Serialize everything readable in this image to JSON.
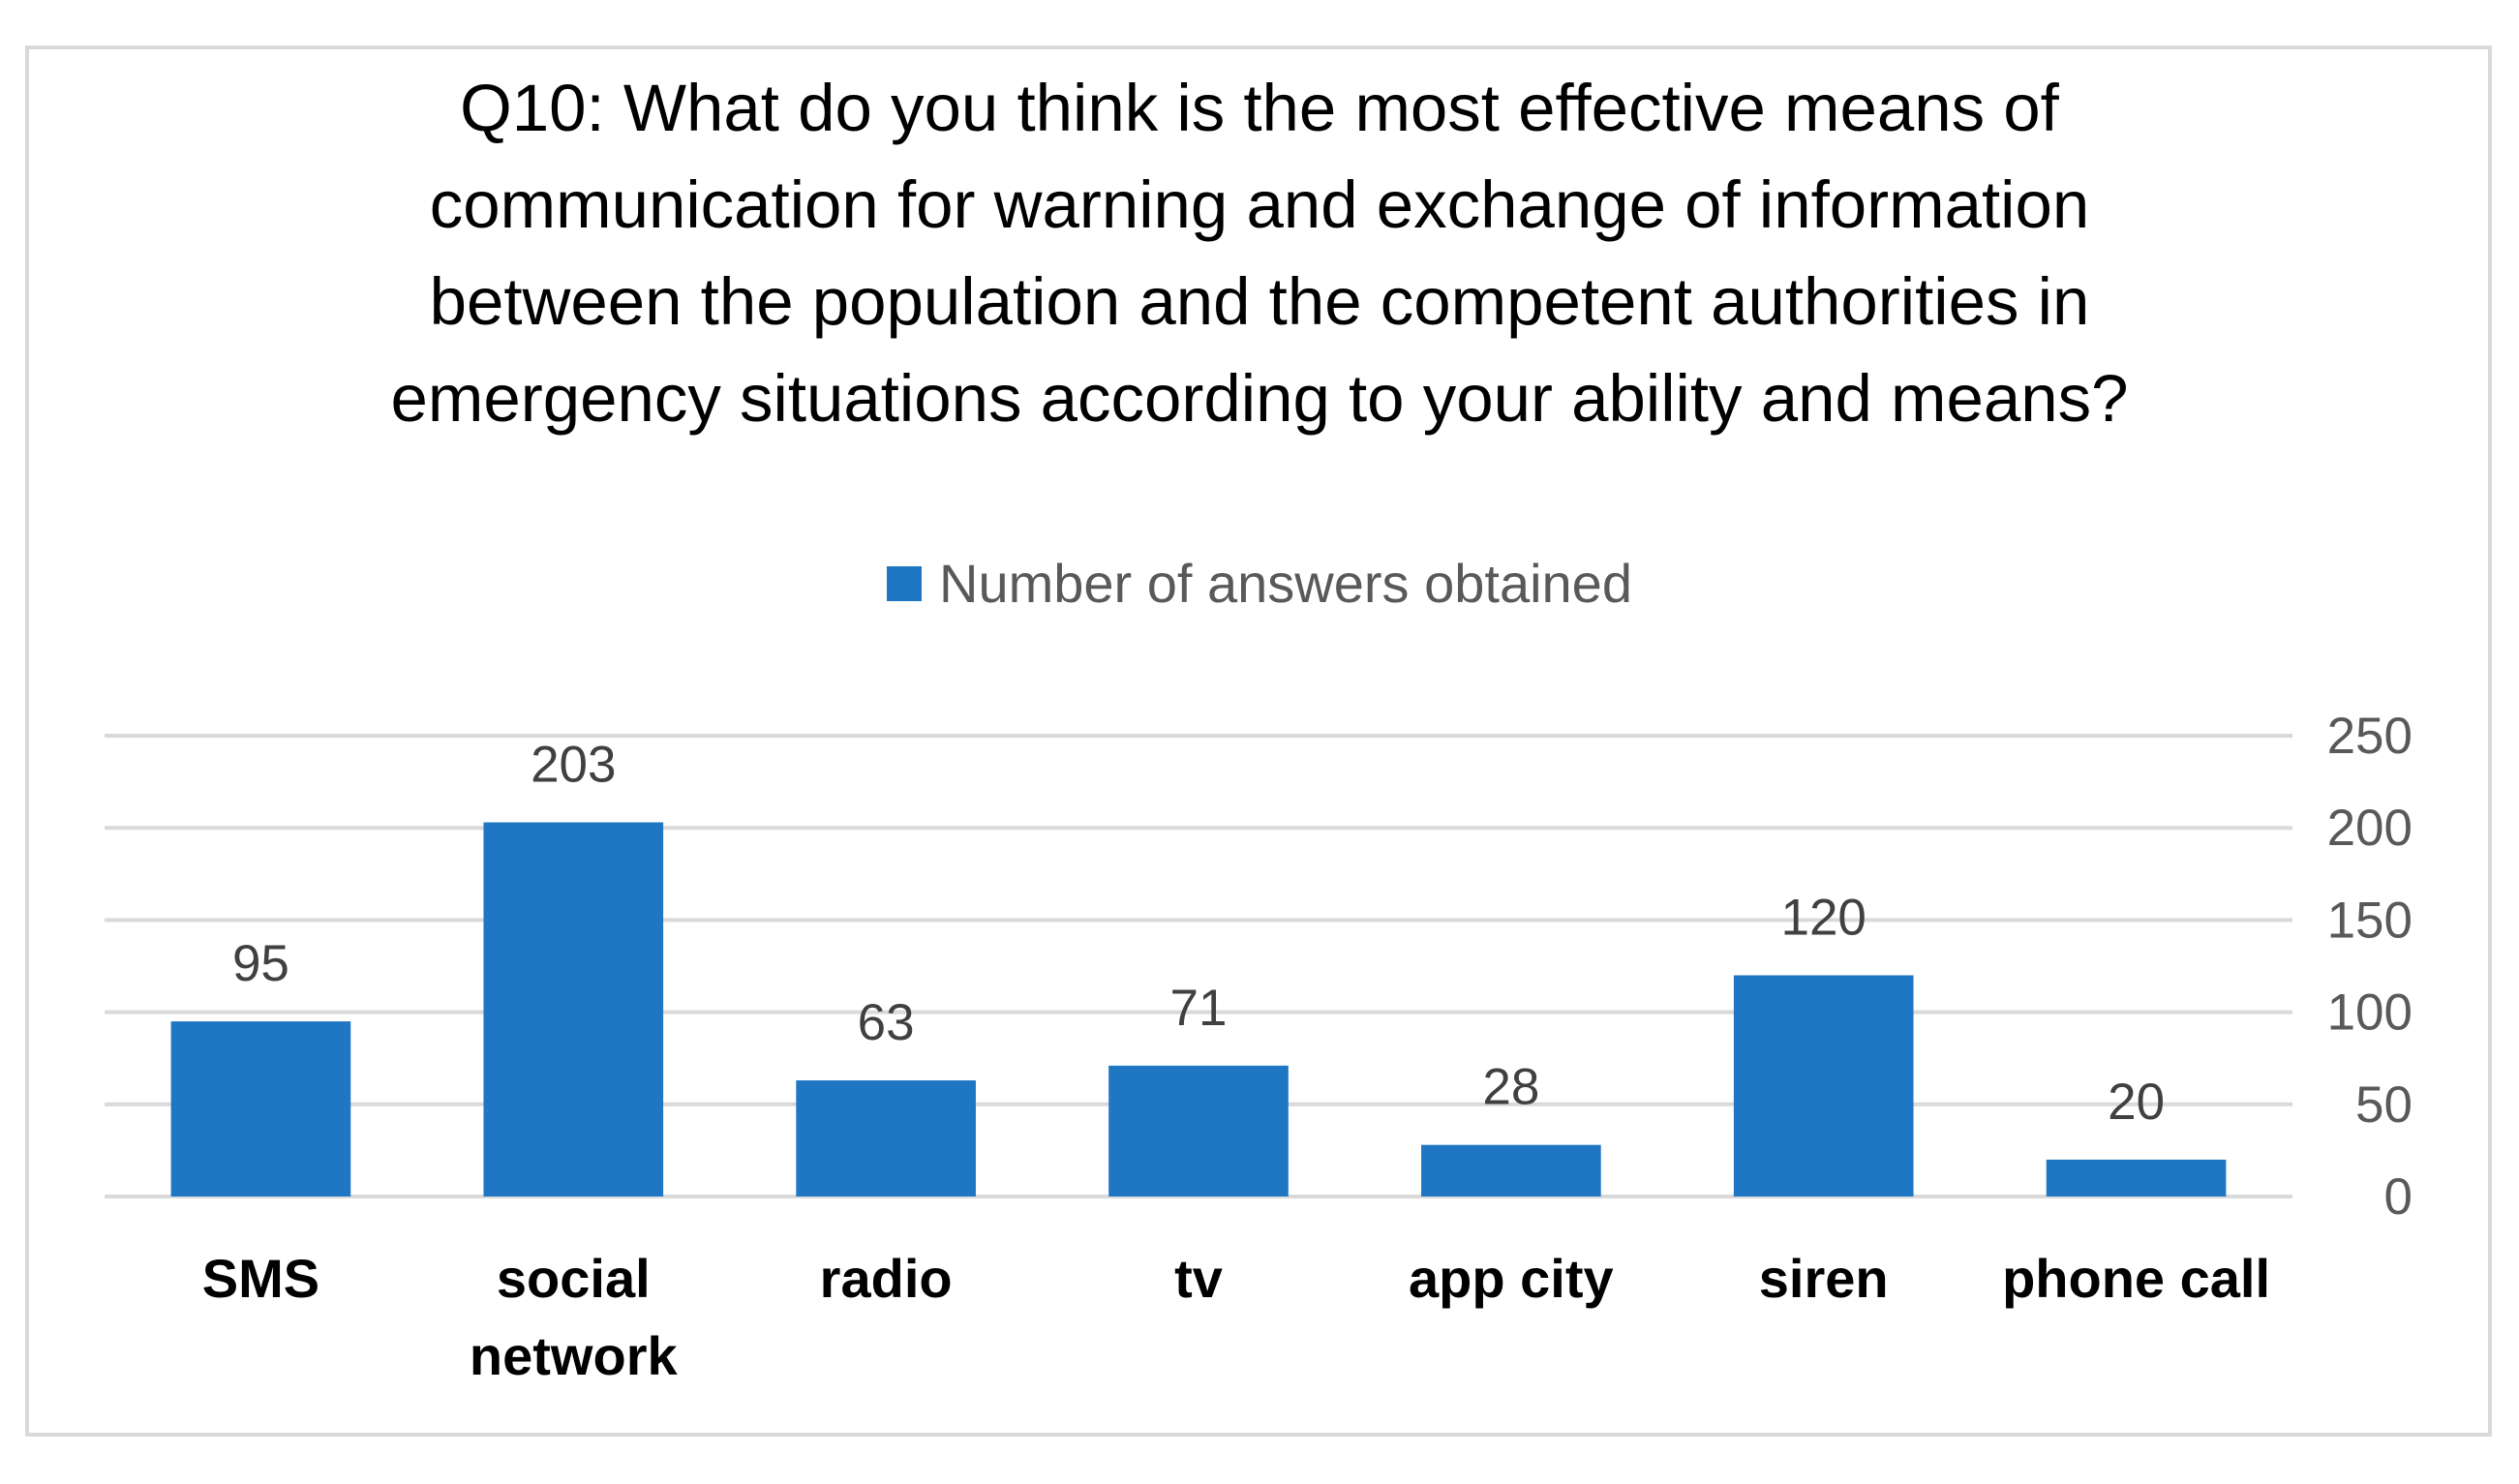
{
  "chart_data": {
    "type": "bar",
    "title": "Q10: What do you think is the most effective means of communication for warning and exchange of information between the population and the competent authorities in emergency situations according to your ability and means?",
    "title_lines": [
      "Q10: What do you think is the most effective means of",
      "communication for warning and exchange of information",
      "between the population and the competent authorities in",
      "emergency situations according to your ability and means?"
    ],
    "categories": [
      "SMS",
      "social network",
      "radio",
      "tv",
      "app city",
      "siren",
      "phone call"
    ],
    "category_lines": [
      [
        "SMS"
      ],
      [
        "social",
        "network"
      ],
      [
        "radio"
      ],
      [
        "tv"
      ],
      [
        "app city"
      ],
      [
        "siren"
      ],
      [
        "phone call"
      ]
    ],
    "series": [
      {
        "name": "Number of answers obtained",
        "color": "#1f77c4",
        "values": [
          95,
          203,
          63,
          71,
          28,
          120,
          20
        ]
      }
    ],
    "ylim": [
      0,
      250
    ],
    "yticks": [
      0,
      50,
      100,
      150,
      200,
      250
    ],
    "y_axis_side": "right",
    "grid": true,
    "legend_position": "top-center",
    "xlabel": "",
    "ylabel": ""
  }
}
